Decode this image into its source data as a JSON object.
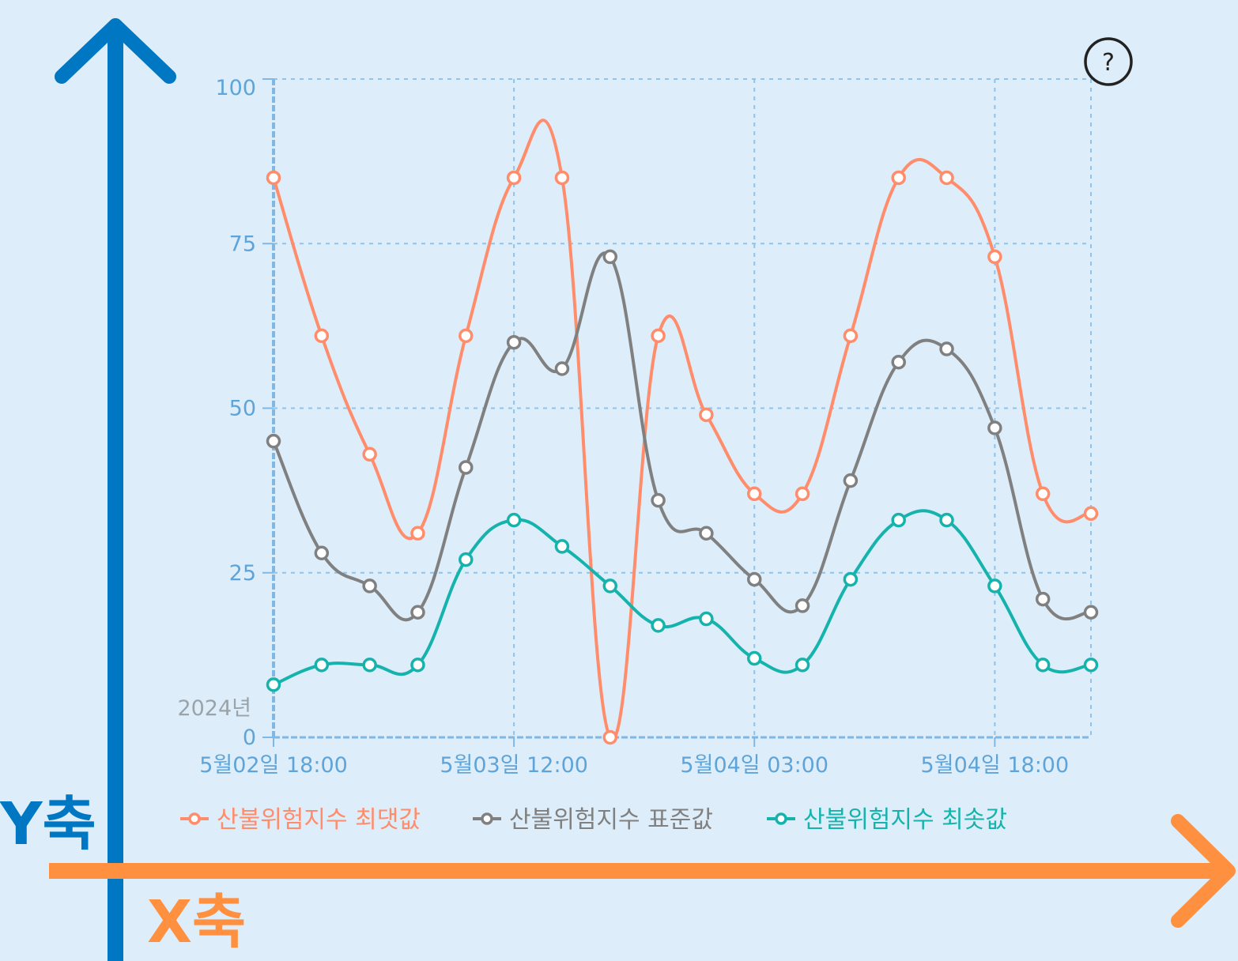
{
  "chart_data": {
    "type": "line",
    "x": [
      "5월02일 18:00",
      "",
      "",
      "",
      "",
      "5월03일 12:00",
      "",
      "",
      "",
      "",
      "5월04일 03:00",
      "",
      "",
      "",
      "",
      "5월04일 18:00",
      "",
      ""
    ],
    "x_tick_labels": [
      "5월02일 18:00",
      "5월03일 12:00",
      "5월04일 03:00",
      "5월04일 18:00"
    ],
    "year_label": "2024년",
    "ylim": [
      0,
      100
    ],
    "y_ticks": [
      0,
      25,
      50,
      75,
      100
    ],
    "grid": true,
    "legend_position": "bottom",
    "series": [
      {
        "name": "산불위험지수 최댓값",
        "color": "#ff8c6b",
        "values": [
          85,
          61,
          43,
          31,
          61,
          85,
          85,
          0,
          61,
          49,
          37,
          37,
          61,
          85,
          85,
          73,
          37,
          34
        ]
      },
      {
        "name": "산불위험지수 표준값",
        "color": "#808080",
        "values": [
          45,
          28,
          23,
          19,
          41,
          60,
          56,
          73,
          36,
          31,
          24,
          20,
          39,
          57,
          59,
          47,
          21,
          19
        ]
      },
      {
        "name": "산불위험지수 최솟값",
        "color": "#16b3ad",
        "values": [
          8,
          11,
          11,
          11,
          27,
          33,
          29,
          23,
          17,
          18,
          12,
          11,
          24,
          33,
          33,
          23,
          11,
          11
        ]
      }
    ]
  },
  "annotations": {
    "y_axis_label": "Y축",
    "x_axis_label": "X축",
    "y_axis_color": "#0077c2",
    "x_axis_color": "#ff9040"
  },
  "help_icon": {
    "symbol": "?"
  }
}
